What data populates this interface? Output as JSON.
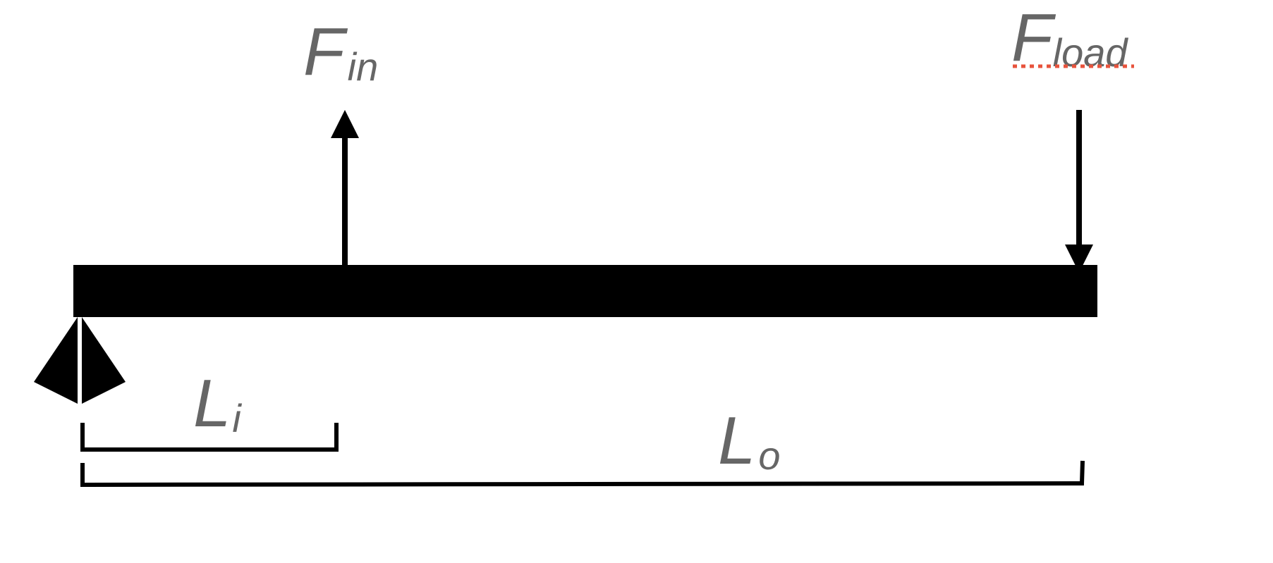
{
  "labels": {
    "f_in": {
      "main": "F",
      "sub": "in"
    },
    "f_load": {
      "main": "F",
      "sub": "load"
    },
    "l_i": {
      "main": "L",
      "sub": "i"
    },
    "l_o": {
      "main": "L",
      "sub": "o"
    }
  },
  "icons": {
    "support": "fulcrum-triangle-icon",
    "input_force": "arrow-up-icon",
    "load_force": "arrow-down-icon"
  },
  "colors": {
    "ink": "#000000",
    "label": "#666666",
    "spellcheck_underline": "#e8533c"
  }
}
